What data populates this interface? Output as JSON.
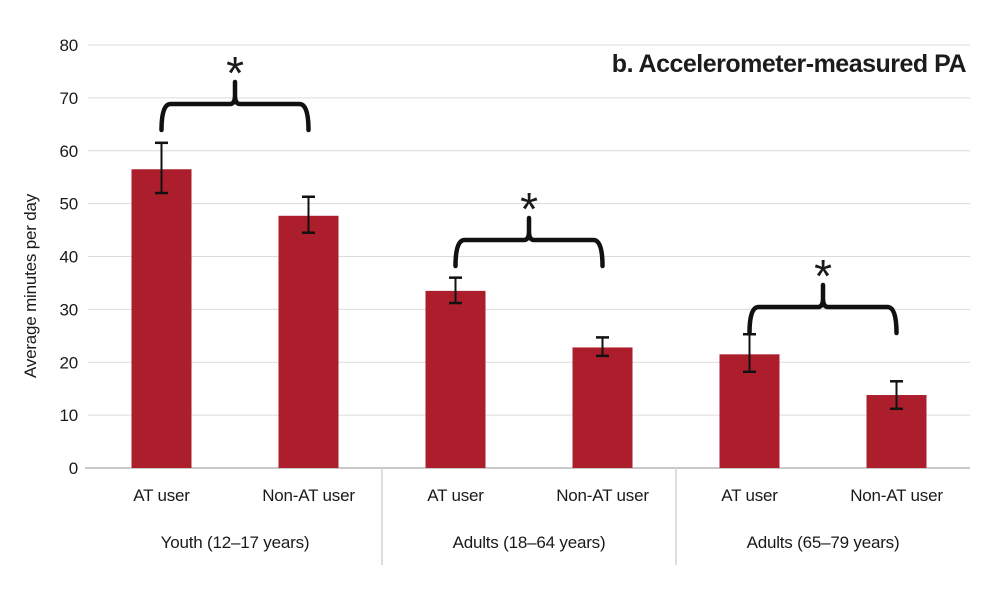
{
  "chart_data": {
    "type": "bar",
    "title": "b. Accelerometer-measured PA",
    "ylabel": "Average minutes per day",
    "xlabel": "",
    "ylim": [
      0,
      80
    ],
    "yticks": [
      0,
      10,
      20,
      30,
      40,
      50,
      60,
      70,
      80
    ],
    "grid": true,
    "legend_position": "none",
    "bar_color": "#ac1e2b",
    "error_bar_color": "#111111",
    "significance_marker": "*",
    "groups": [
      {
        "label": "Youth (12–17 years)",
        "significant": true,
        "bars": [
          {
            "label": "AT user",
            "value": 56.5,
            "err_low": 52.0,
            "err_high": 61.5
          },
          {
            "label": "Non-AT user",
            "value": 47.7,
            "err_low": 44.5,
            "err_high": 51.3
          }
        ]
      },
      {
        "label": "Adults (18–64 years)",
        "significant": true,
        "bars": [
          {
            "label": "AT user",
            "value": 33.5,
            "err_low": 31.2,
            "err_high": 36.0
          },
          {
            "label": "Non-AT user",
            "value": 22.8,
            "err_low": 21.2,
            "err_high": 24.7
          }
        ]
      },
      {
        "label": "Adults (65–79 years)",
        "significant": true,
        "bars": [
          {
            "label": "AT user",
            "value": 21.5,
            "err_low": 18.2,
            "err_high": 25.3
          },
          {
            "label": "Non-AT user",
            "value": 13.8,
            "err_low": 11.2,
            "err_high": 16.4
          }
        ]
      }
    ]
  }
}
